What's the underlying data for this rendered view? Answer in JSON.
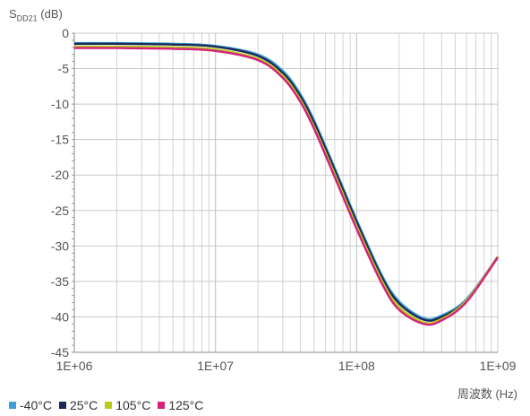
{
  "chart_data": {
    "type": "line",
    "ylabel_main": "S",
    "ylabel_sub": "DD21",
    "ylabel_unit": " (dB)",
    "xlabel": "周波数 (Hz)",
    "x_scale": "log",
    "xlim": [
      1000000,
      1000000000
    ],
    "ylim": [
      -45,
      0
    ],
    "x_ticks": [
      "1E+06",
      "1E+07",
      "1E+08",
      "1E+09"
    ],
    "y_ticks": [
      "0",
      "-5",
      "-10",
      "-15",
      "-20",
      "-25",
      "-30",
      "-35",
      "-40",
      "-45"
    ],
    "grid": true,
    "legend_position": "bottom-left",
    "x": [
      1000000,
      2000000,
      5000000,
      10000000,
      20000000,
      30000000,
      40000000,
      50000000,
      70000000,
      100000000,
      150000000,
      200000000,
      300000000,
      400000000,
      600000000,
      1000000000
    ],
    "series": [
      {
        "name": "-40°C",
        "color": "#3d9fd8",
        "values": [
          -1.4,
          -1.4,
          -1.5,
          -1.8,
          -3.0,
          -5.3,
          -8.6,
          -12.3,
          -19.0,
          -26.3,
          -34.0,
          -37.8,
          -40.2,
          -39.8,
          -37.5,
          -31.5
        ]
      },
      {
        "name": "25°C",
        "color": "#1b2a55",
        "values": [
          -1.5,
          -1.5,
          -1.6,
          -1.9,
          -3.2,
          -5.6,
          -8.9,
          -12.6,
          -19.3,
          -26.6,
          -34.3,
          -38.1,
          -40.4,
          -40.0,
          -37.7,
          -31.6
        ]
      },
      {
        "name": "105°C",
        "color": "#b8cc1a",
        "values": [
          -1.9,
          -1.9,
          -2.0,
          -2.3,
          -3.6,
          -6.0,
          -9.4,
          -13.2,
          -19.9,
          -27.2,
          -34.8,
          -38.6,
          -40.8,
          -40.3,
          -37.7,
          -31.5
        ]
      },
      {
        "name": "125°C",
        "color": "#d6207b",
        "values": [
          -2.1,
          -2.1,
          -2.2,
          -2.5,
          -3.8,
          -6.3,
          -9.7,
          -13.5,
          -20.3,
          -27.6,
          -35.2,
          -39.0,
          -41.0,
          -40.5,
          -37.9,
          -31.6
        ]
      }
    ]
  }
}
